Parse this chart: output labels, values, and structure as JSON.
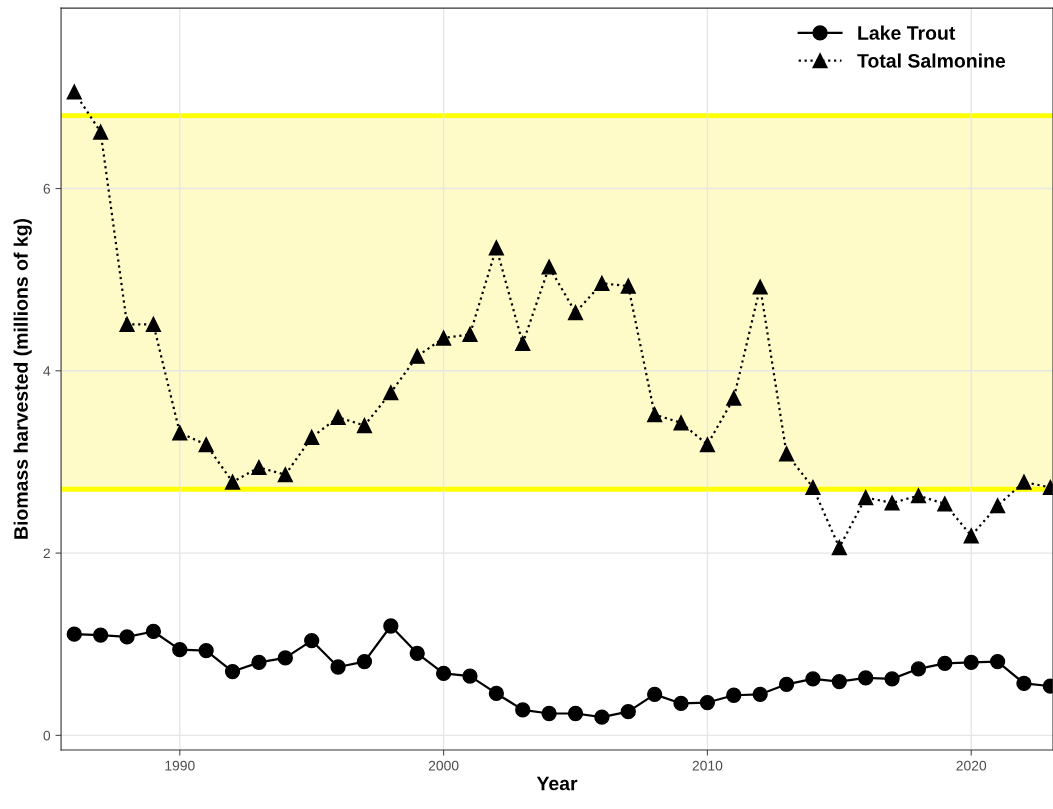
{
  "chart_data": {
    "type": "line",
    "xlabel": "Year",
    "ylabel": "Biomass harvested (millions of kg)",
    "x": [
      1986,
      1987,
      1988,
      1989,
      1990,
      1991,
      1992,
      1993,
      1994,
      1995,
      1996,
      1997,
      1998,
      1999,
      2000,
      2001,
      2002,
      2003,
      2004,
      2005,
      2006,
      2007,
      2008,
      2009,
      2010,
      2011,
      2012,
      2013,
      2014,
      2015,
      2016,
      2017,
      2018,
      2019,
      2020,
      2021,
      2022,
      2023
    ],
    "series": [
      {
        "name": "Lake Trout",
        "color": "#000000",
        "marker": "circle",
        "line_style": "solid",
        "values": [
          1.11,
          1.1,
          1.08,
          1.14,
          0.94,
          0.93,
          0.7,
          0.8,
          0.85,
          1.04,
          0.75,
          0.81,
          1.2,
          0.9,
          0.68,
          0.65,
          0.46,
          0.28,
          0.24,
          0.24,
          0.2,
          0.26,
          0.45,
          0.35,
          0.36,
          0.44,
          0.45,
          0.56,
          0.62,
          0.59,
          0.63,
          0.62,
          0.73,
          0.79,
          0.8,
          0.81,
          0.57,
          0.54
        ]
      },
      {
        "name": "Total Salmonine",
        "color": "#000000",
        "marker": "triangle",
        "line_style": "dotted",
        "values": [
          7.06,
          6.62,
          4.51,
          4.51,
          3.32,
          3.19,
          2.78,
          2.94,
          2.86,
          3.27,
          3.49,
          3.4,
          3.76,
          4.16,
          4.36,
          4.4,
          5.35,
          4.3,
          5.14,
          4.64,
          4.96,
          4.93,
          3.52,
          3.43,
          3.19,
          3.7,
          4.92,
          3.09,
          2.72,
          2.06,
          2.61,
          2.55,
          2.63,
          2.54,
          2.19,
          2.52,
          2.78,
          2.72
        ]
      }
    ],
    "xlim": [
      1985.5,
      2023.1
    ],
    "xticks": [
      1990,
      2000,
      2010,
      2020
    ],
    "ylim": [
      -0.16,
      7.98
    ],
    "yticks": [
      0,
      2,
      4,
      6
    ],
    "bands": [
      {
        "axis": "y",
        "from": 2.7,
        "to": 6.8,
        "color": "#fffbc8"
      }
    ],
    "ref_lines": [
      {
        "axis": "y",
        "value": 2.7,
        "color": "#ffff00"
      },
      {
        "axis": "y",
        "value": 6.8,
        "color": "#ffff00"
      }
    ],
    "grid": true,
    "legend": "top right"
  }
}
